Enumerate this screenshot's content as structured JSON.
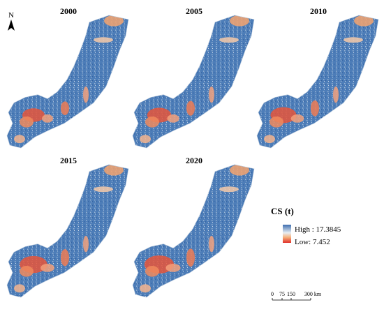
{
  "north": "N",
  "maps": [
    {
      "year": "2000"
    },
    {
      "year": "2005"
    },
    {
      "year": "2010"
    },
    {
      "year": "2015"
    },
    {
      "year": "2020"
    }
  ],
  "legend": {
    "title": "CS (t)",
    "high": "High : 17.3845",
    "low": "Low: 7.452"
  },
  "scale_bar": {
    "labels": [
      "0",
      "75",
      "150",
      "300 km"
    ]
  }
}
